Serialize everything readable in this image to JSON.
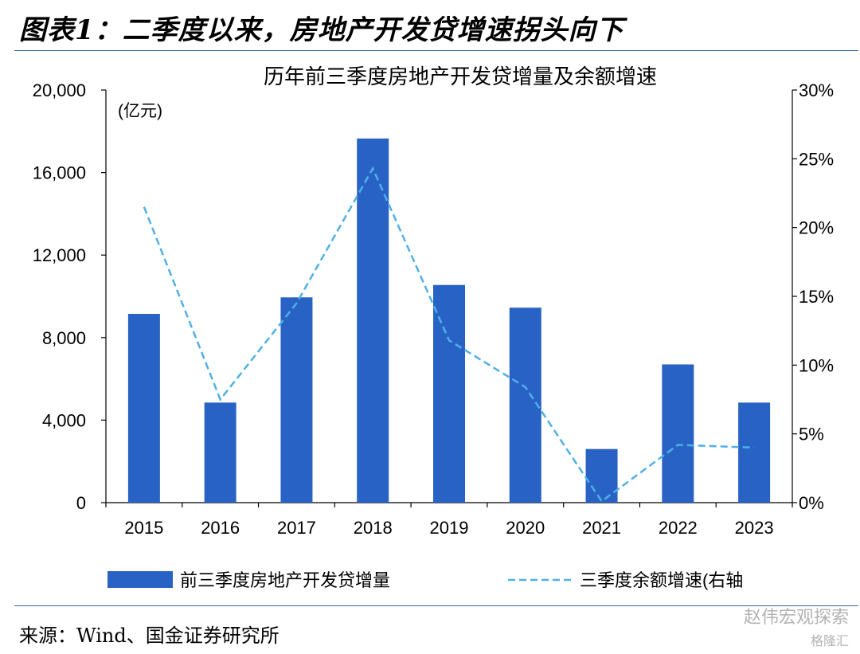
{
  "figure": {
    "title": "图表1：二季度以来，房地产开发贷增速拐头向下",
    "source": "来源：Wind、国金证券研究所"
  },
  "watermark": {
    "line1": "赵伟宏观探索",
    "line2": "格隆汇"
  },
  "chart_data": {
    "type": "bar",
    "title": "历年前三季度房地产开发贷增量及余额增速",
    "unit_label": "(亿元)",
    "categories": [
      "2015",
      "2016",
      "2017",
      "2018",
      "2019",
      "2020",
      "2021",
      "2022",
      "2023"
    ],
    "ylim": [
      0,
      20000
    ],
    "y_ticks": [
      "0",
      "4,000",
      "8,000",
      "12,000",
      "16,000",
      "20,000"
    ],
    "y2lim": [
      0,
      30
    ],
    "y2_ticks": [
      "0%",
      "5%",
      "10%",
      "15%",
      "20%",
      "25%",
      "30%"
    ],
    "series": [
      {
        "name": "前三季度房地产开发贷增量",
        "type": "bar",
        "axis": "left",
        "color": "#2962c5",
        "values": [
          9150,
          4850,
          9950,
          17650,
          10550,
          9450,
          2600,
          6700,
          4850
        ]
      },
      {
        "name": "三季度余额增速(右轴",
        "type": "line",
        "axis": "right",
        "color": "#4fb0e8",
        "dashed": true,
        "values": [
          21.5,
          7.5,
          14.5,
          24.3,
          11.8,
          8.4,
          0.1,
          4.2,
          4.0
        ]
      }
    ],
    "legend_position": "bottom",
    "grid": false
  }
}
